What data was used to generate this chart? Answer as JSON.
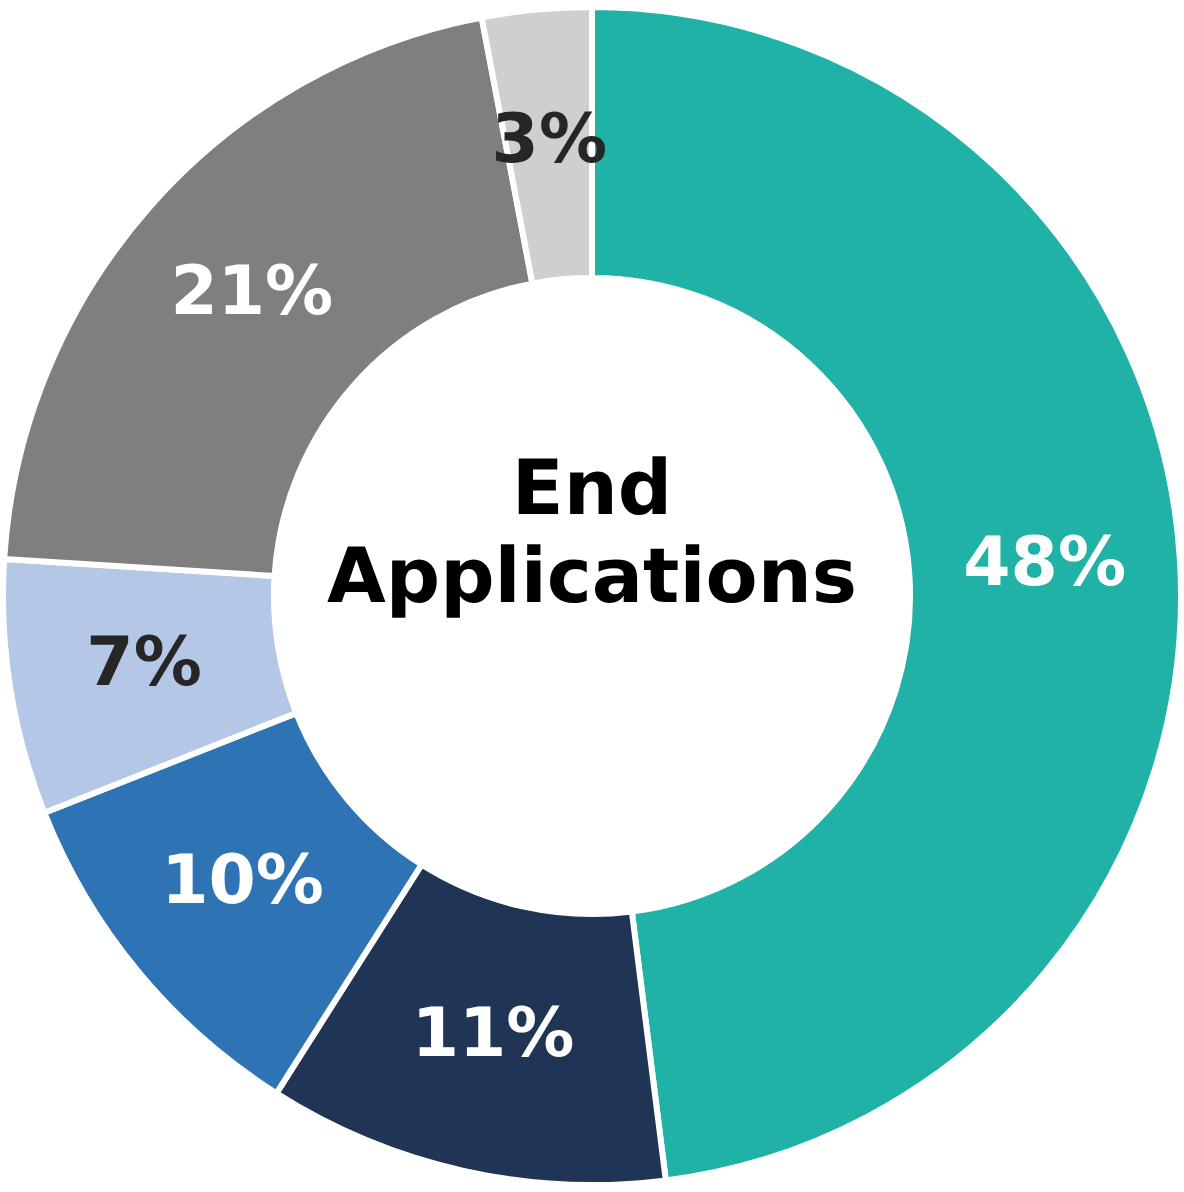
{
  "chart_data": {
    "type": "donut",
    "title": "End Applications",
    "categories": [
      null,
      null,
      null,
      null,
      null,
      null
    ],
    "values": [
      48,
      11,
      10,
      7,
      21,
      3
    ],
    "colors": [
      "#20b2a6",
      "#203555",
      "#2e74b5",
      "#b4c7e7",
      "#7f7f7f",
      "#d0cece"
    ],
    "value_labels": [
      "48%",
      "11%",
      "10%",
      "7%",
      "21%",
      "3%"
    ],
    "legend": false
  }
}
